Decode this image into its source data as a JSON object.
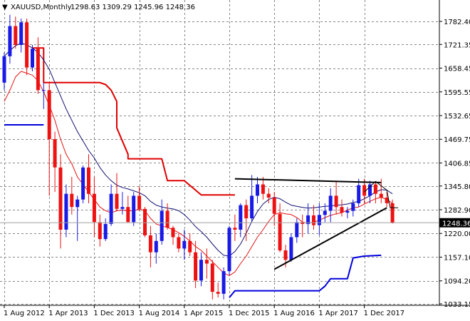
{
  "header": {
    "menu_arrow": "▼",
    "symbol": "XAUUSD,Monthly",
    "ohlc": "1298.63 1309.29 1245.96 1248.36"
  },
  "colors": {
    "bull": "#1a1ae6",
    "bear": "#ee1111",
    "sma_fast": "#e31515",
    "sma_slow": "#101070",
    "stop_red": "#e00000",
    "stop_blue": "#0000dd",
    "trend": "#000000",
    "grid": "#888888"
  },
  "chart_data": {
    "type": "candlestick",
    "instrument": "XAUUSD",
    "timeframe": "Monthly",
    "current_price": 1248.36,
    "current_price_label": "1248.36",
    "ylim": [
      1033.15,
      1810
    ],
    "y_ticks": [
      1782.4,
      1721.35,
      1658.45,
      1595.55,
      1532.65,
      1469.75,
      1406.85,
      1345.8,
      1282.9,
      1220.0,
      1157.1,
      1094.2,
      1033.15
    ],
    "y_tick_labels": [
      "1782.40",
      "1721.35",
      "1658.45",
      "1595.55",
      "1532.65",
      "1469.75",
      "1406.85",
      "1345.80",
      "1282.90",
      "1220.00",
      "1157.10",
      "1094.20",
      "1033.15"
    ],
    "x_labels": [
      {
        "label": "1 Aug 2012",
        "index": 0
      },
      {
        "label": "1 Apr 2013",
        "index": 8
      },
      {
        "label": "1 Dec 2013",
        "index": 16
      },
      {
        "label": "1 Aug 2014",
        "index": 24
      },
      {
        "label": "1 Apr 2015",
        "index": 32
      },
      {
        "label": "1 Dec 2015",
        "index": 40
      },
      {
        "label": "1 Aug 2016",
        "index": 48
      },
      {
        "label": "1 Apr 2017",
        "index": 56
      },
      {
        "label": "1 Dec 2017",
        "index": 64
      }
    ],
    "grid": true,
    "candles": [
      [
        1620,
        1700,
        1600,
        1690
      ],
      [
        1690,
        1800,
        1670,
        1770
      ],
      [
        1770,
        1795,
        1710,
        1720
      ],
      [
        1720,
        1790,
        1700,
        1780
      ],
      [
        1780,
        1790,
        1640,
        1660
      ],
      [
        1660,
        1720,
        1650,
        1710
      ],
      [
        1710,
        1740,
        1590,
        1600
      ],
      [
        1600,
        1620,
        1550,
        1600
      ],
      [
        1600,
        1620,
        1320,
        1470
      ],
      [
        1470,
        1490,
        1330,
        1395
      ],
      [
        1395,
        1430,
        1180,
        1230
      ],
      [
        1230,
        1350,
        1210,
        1325
      ],
      [
        1325,
        1370,
        1270,
        1290
      ],
      [
        1290,
        1320,
        1200,
        1310
      ],
      [
        1310,
        1400,
        1300,
        1395
      ],
      [
        1395,
        1430,
        1300,
        1325
      ],
      [
        1325,
        1370,
        1210,
        1250
      ],
      [
        1250,
        1270,
        1185,
        1205
      ],
      [
        1205,
        1260,
        1200,
        1245
      ],
      [
        1245,
        1350,
        1240,
        1325
      ],
      [
        1325,
        1380,
        1280,
        1285
      ],
      [
        1285,
        1330,
        1270,
        1290
      ],
      [
        1290,
        1320,
        1250,
        1250
      ],
      [
        1250,
        1330,
        1240,
        1320
      ],
      [
        1320,
        1345,
        1280,
        1285
      ],
      [
        1285,
        1290,
        1210,
        1215
      ],
      [
        1215,
        1240,
        1130,
        1170
      ],
      [
        1170,
        1220,
        1140,
        1200
      ],
      [
        1200,
        1310,
        1190,
        1280
      ],
      [
        1280,
        1300,
        1230,
        1235
      ],
      [
        1235,
        1240,
        1190,
        1210
      ],
      [
        1210,
        1220,
        1170,
        1180
      ],
      [
        1180,
        1230,
        1150,
        1200
      ],
      [
        1200,
        1220,
        1160,
        1170
      ],
      [
        1170,
        1200,
        1075,
        1095
      ],
      [
        1095,
        1170,
        1080,
        1150
      ],
      [
        1150,
        1180,
        1100,
        1140
      ],
      [
        1140,
        1150,
        1045,
        1065
      ],
      [
        1065,
        1090,
        1050,
        1060
      ],
      [
        1060,
        1130,
        1045,
        1120
      ],
      [
        1120,
        1240,
        1110,
        1235
      ],
      [
        1235,
        1270,
        1200,
        1230
      ],
      [
        1230,
        1300,
        1210,
        1295
      ],
      [
        1295,
        1310,
        1200,
        1260
      ],
      [
        1260,
        1375,
        1250,
        1320
      ],
      [
        1320,
        1370,
        1300,
        1350
      ],
      [
        1350,
        1370,
        1310,
        1325
      ],
      [
        1325,
        1340,
        1300,
        1315
      ],
      [
        1315,
        1330,
        1240,
        1272
      ],
      [
        1272,
        1300,
        1170,
        1175
      ],
      [
        1175,
        1190,
        1130,
        1150
      ],
      [
        1150,
        1220,
        1145,
        1210
      ],
      [
        1210,
        1260,
        1195,
        1250
      ],
      [
        1250,
        1270,
        1210,
        1245
      ],
      [
        1245,
        1300,
        1220,
        1268
      ],
      [
        1268,
        1295,
        1230,
        1242
      ],
      [
        1242,
        1300,
        1215,
        1269
      ],
      [
        1269,
        1300,
        1250,
        1280
      ],
      [
        1280,
        1340,
        1250,
        1320
      ],
      [
        1320,
        1358,
        1270,
        1290
      ],
      [
        1290,
        1310,
        1265,
        1275
      ],
      [
        1275,
        1290,
        1260,
        1280
      ],
      [
        1280,
        1310,
        1265,
        1300
      ],
      [
        1300,
        1365,
        1290,
        1348
      ],
      [
        1348,
        1365,
        1300,
        1320
      ],
      [
        1320,
        1360,
        1300,
        1350
      ],
      [
        1350,
        1358,
        1300,
        1325
      ],
      [
        1325,
        1365,
        1300,
        1315
      ],
      [
        1315,
        1330,
        1290,
        1300
      ],
      [
        1300,
        1310,
        1246,
        1248
      ]
    ],
    "sma_fast": [
      [
        0,
        1570
      ],
      [
        1,
        1600
      ],
      [
        2,
        1635
      ],
      [
        3,
        1650
      ],
      [
        4,
        1645
      ],
      [
        5,
        1640
      ],
      [
        6,
        1625
      ],
      [
        7,
        1595
      ],
      [
        8,
        1560
      ],
      [
        9,
        1520
      ],
      [
        10,
        1470
      ],
      [
        11,
        1430
      ],
      [
        12,
        1405
      ],
      [
        13,
        1370
      ],
      [
        14,
        1350
      ],
      [
        15,
        1330
      ],
      [
        16,
        1310
      ],
      [
        17,
        1290
      ],
      [
        18,
        1280
      ],
      [
        19,
        1275
      ],
      [
        20,
        1280
      ],
      [
        21,
        1282
      ],
      [
        22,
        1280
      ],
      [
        23,
        1280
      ],
      [
        24,
        1285
      ],
      [
        25,
        1280
      ],
      [
        26,
        1260
      ],
      [
        27,
        1245
      ],
      [
        28,
        1240
      ],
      [
        29,
        1236
      ],
      [
        30,
        1230
      ],
      [
        31,
        1222
      ],
      [
        32,
        1212
      ],
      [
        33,
        1200
      ],
      [
        34,
        1185
      ],
      [
        35,
        1175
      ],
      [
        36,
        1160
      ],
      [
        37,
        1145
      ],
      [
        38,
        1130
      ],
      [
        39,
        1115
      ],
      [
        40,
        1108
      ],
      [
        41,
        1118
      ],
      [
        42,
        1140
      ],
      [
        43,
        1160
      ],
      [
        44,
        1185
      ],
      [
        45,
        1210
      ],
      [
        46,
        1230
      ],
      [
        47,
        1252
      ],
      [
        48,
        1270
      ],
      [
        49,
        1275
      ],
      [
        50,
        1272
      ],
      [
        51,
        1270
      ],
      [
        52,
        1262
      ],
      [
        53,
        1250
      ],
      [
        54,
        1247
      ],
      [
        55,
        1250
      ],
      [
        56,
        1255
      ],
      [
        57,
        1262
      ],
      [
        58,
        1268
      ],
      [
        59,
        1272
      ],
      [
        60,
        1275
      ],
      [
        61,
        1282
      ],
      [
        62,
        1288
      ],
      [
        63,
        1290
      ],
      [
        64,
        1298
      ],
      [
        65,
        1305
      ],
      [
        66,
        1312
      ],
      [
        67,
        1316
      ],
      [
        68,
        1310
      ],
      [
        69,
        1300
      ]
    ],
    "sma_slow": [
      [
        0,
        1690
      ],
      [
        1,
        1705
      ],
      [
        2,
        1718
      ],
      [
        3,
        1725
      ],
      [
        4,
        1720
      ],
      [
        5,
        1712
      ],
      [
        6,
        1700
      ],
      [
        7,
        1680
      ],
      [
        8,
        1655
      ],
      [
        9,
        1620
      ],
      [
        10,
        1585
      ],
      [
        11,
        1550
      ],
      [
        12,
        1520
      ],
      [
        13,
        1490
      ],
      [
        14,
        1465
      ],
      [
        15,
        1440
      ],
      [
        16,
        1420
      ],
      [
        17,
        1395
      ],
      [
        18,
        1375
      ],
      [
        19,
        1360
      ],
      [
        20,
        1348
      ],
      [
        21,
        1342
      ],
      [
        22,
        1338
      ],
      [
        23,
        1333
      ],
      [
        24,
        1328
      ],
      [
        25,
        1320
      ],
      [
        26,
        1305
      ],
      [
        27,
        1295
      ],
      [
        28,
        1290
      ],
      [
        29,
        1287
      ],
      [
        30,
        1285
      ],
      [
        31,
        1280
      ],
      [
        32,
        1270
      ],
      [
        33,
        1255
      ],
      [
        34,
        1238
      ],
      [
        35,
        1225
      ],
      [
        36,
        1210
      ],
      [
        37,
        1192
      ],
      [
        38,
        1175
      ],
      [
        39,
        1162
      ],
      [
        40,
        1160
      ],
      [
        41,
        1172
      ],
      [
        42,
        1192
      ],
      [
        43,
        1220
      ],
      [
        44,
        1252
      ],
      [
        45,
        1278
      ],
      [
        46,
        1298
      ],
      [
        47,
        1310
      ],
      [
        48,
        1316
      ],
      [
        49,
        1312
      ],
      [
        50,
        1303
      ],
      [
        51,
        1295
      ],
      [
        52,
        1292
      ],
      [
        53,
        1289
      ],
      [
        54,
        1287
      ],
      [
        55,
        1288
      ],
      [
        56,
        1290
      ],
      [
        57,
        1292
      ],
      [
        58,
        1293
      ],
      [
        59,
        1295
      ],
      [
        60,
        1296
      ],
      [
        61,
        1298
      ],
      [
        62,
        1302
      ],
      [
        63,
        1305
      ],
      [
        64,
        1312
      ],
      [
        65,
        1320
      ],
      [
        66,
        1330
      ],
      [
        67,
        1336
      ],
      [
        68,
        1335
      ],
      [
        69,
        1325
      ]
    ],
    "stop_red": [
      [
        5,
        1712
      ],
      [
        7,
        1712
      ],
      [
        7,
        1620
      ],
      [
        17,
        1620
      ],
      [
        18,
        1615
      ],
      [
        19,
        1600
      ],
      [
        20,
        1570
      ],
      [
        20,
        1500
      ],
      [
        21,
        1465
      ],
      [
        22,
        1430
      ],
      [
        22,
        1418
      ],
      [
        28,
        1418
      ],
      [
        29,
        1360
      ],
      [
        32,
        1360
      ],
      [
        34,
        1335
      ],
      [
        35,
        1322
      ],
      [
        41,
        1322
      ]
    ],
    "stop_blue_upper": [
      [
        0,
        1508
      ],
      [
        7,
        1508
      ]
    ],
    "stop_blue_lower": [
      [
        40,
        1050
      ],
      [
        41,
        1068
      ],
      [
        56,
        1068
      ],
      [
        57,
        1080
      ],
      [
        58,
        1100
      ],
      [
        61,
        1100
      ],
      [
        62,
        1155
      ],
      [
        64,
        1160
      ],
      [
        67,
        1162
      ]
    ],
    "trend_upper": [
      [
        41,
        1365
      ],
      [
        67,
        1355
      ]
    ],
    "trend_lower": [
      [
        48,
        1125
      ],
      [
        68,
        1288
      ]
    ],
    "trend_right": [
      [
        64,
        1330
      ],
      [
        66,
        1358
      ],
      [
        68,
        1335
      ],
      [
        68.6,
        1288
      ],
      [
        70,
        1288
      ]
    ]
  }
}
